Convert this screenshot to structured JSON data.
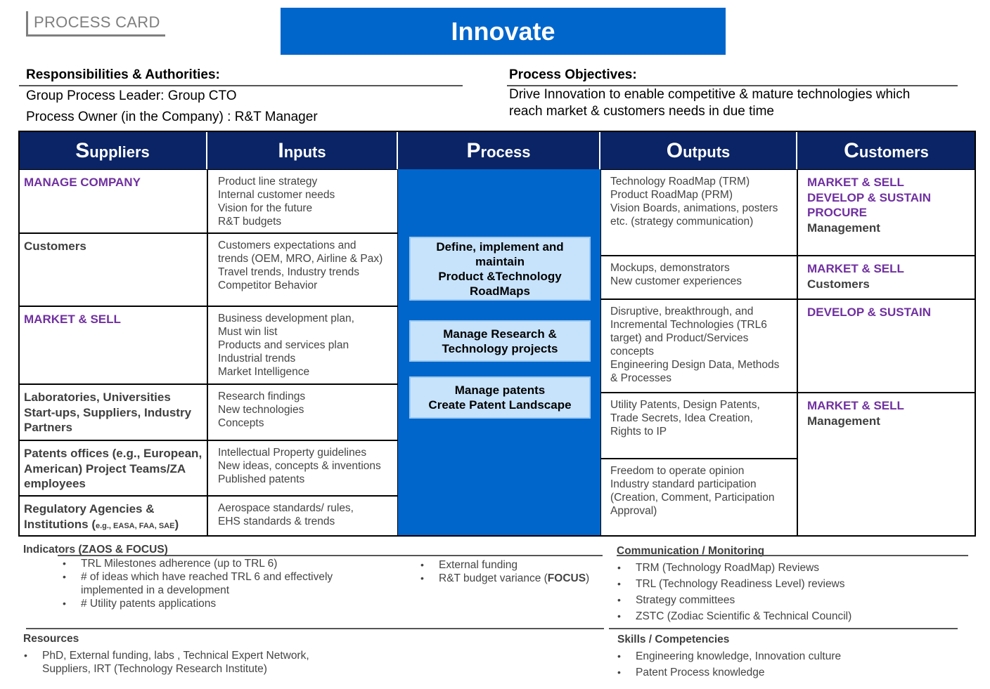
{
  "header": {
    "card_label": "PROCESS CARD",
    "title": "Innovate"
  },
  "responsibilities": {
    "heading": "Responsibilities  & Authorities:",
    "line1": "Group Process Leader:  Group CTO",
    "line2": "Process Owner (in the Company) : R&T Manager"
  },
  "objectives": {
    "heading": "Process Objectives:",
    "line1": "Drive Innovation  to enable competitive  & mature technologies which",
    "line2": "reach market & customers needs in due time"
  },
  "columns": {
    "suppliers": {
      "cap": "S",
      "rest": "uppliers"
    },
    "inputs": {
      "cap": "I",
      "rest": "nputs"
    },
    "process": {
      "cap": "P",
      "rest": "rocess"
    },
    "outputs": {
      "cap": "O",
      "rest": "utputs"
    },
    "customers": {
      "cap": "C",
      "rest": "ustomers"
    }
  },
  "suppliers": [
    "MANAGE COMPANY",
    "Customers",
    "MARKET & SELL",
    "Laboratories, Universities Start-ups, Suppliers, Industry Partners",
    "Patents offices (e.g., European, American) Project Teams/ZA employees",
    {
      "main": "Regulatory Agencies & Institutions (",
      "small": "e.g., EASA,  FAA,  SAE",
      "close": ")"
    }
  ],
  "inputs": [
    [
      "Product line strategy",
      "Internal  customer  needs",
      "Vision for the future",
      "R&T budgets"
    ],
    [
      "Customers expectations  and",
      "trends (OEM, MRO, Airline & Pax)",
      "Travel trends, Industry  trends",
      "Competitor Behavior"
    ],
    [
      "Business development  plan,",
      "Must win list",
      "Products and services plan",
      "Industrial  trends",
      "Market Intelligence"
    ],
    [
      "Research findings",
      "New technologies",
      "Concepts"
    ],
    [
      "Intellectual  Property guidelines",
      "New ideas, concepts & inventions",
      "Published patents"
    ],
    [
      "Aerospace standards/ rules,",
      "EHS standards & trends"
    ]
  ],
  "process": [
    [
      "Define, implement and",
      "maintain",
      "Product &Technology",
      "RoadMaps"
    ],
    [
      "Manage Research &",
      "Technology projects"
    ],
    [
      "Manage patents",
      "Create Patent Landscape"
    ]
  ],
  "outputs": [
    [
      "Technology  RoadMap (TRM)",
      "Product RoadMap (PRM)",
      "Vision Boards, animations,  posters",
      "etc. (strategy  communication)"
    ],
    [
      "Mockups, demonstrators",
      "New customer  experiences"
    ],
    [
      "Disruptive, breakthrough,  and",
      "Incremental  Technologies  (TRL6",
      "target) and Product/Services",
      "concepts",
      "Engineering  Design Data, Methods",
      "& Processes"
    ],
    [
      "Utility  Patents, Design Patents,",
      "Trade Secrets, Idea Creation,",
      "Rights to IP"
    ],
    [
      "Freedom to operate opinion",
      "Industry  standard participation",
      "(Creation,  Comment,  Participation",
      "Approval)"
    ]
  ],
  "customers": [
    {
      "purple": [
        "MARKET & SELL",
        "DEVELOP & SUSTAIN",
        "PROCURE"
      ],
      "dark": "Management"
    },
    {
      "purple": [
        "MARKET & SELL"
      ],
      "dark": "Customers"
    },
    {
      "purple": [
        "DEVELOP & SUSTAIN"
      ],
      "dark": ""
    },
    {
      "purple": [
        "MARKET & SELL"
      ],
      "dark": "Management"
    }
  ],
  "indicators": {
    "heading": "Indicators (ZAOS  & FOCUS)",
    "left": [
      "TRL Milestones adherence  (up to TRL 6)",
      "# of ideas which have reached TRL 6 and effectively implemented in a development",
      "# Utility patents applications"
    ],
    "right": [
      "External  funding",
      "R&T budget variance ("
    ],
    "right_bold": "FOCUS",
    "right_close": ")"
  },
  "communication": {
    "heading": "Communication / Monitoring",
    "items": [
      "TRM (Technology  RoadMap) Reviews",
      "TRL (Technology  Readiness Level) reviews",
      "Strategy committees",
      "ZSTC (Zodiac Scientific & Technical  Council)"
    ]
  },
  "resources": {
    "heading": "Resources",
    "items": [
      "PhD, External funding,  labs , Technical Expert Network, Suppliers, IRT (Technology  Research Institute)"
    ]
  },
  "skills": {
    "heading": "Skills / Competencies",
    "items": [
      "Engineering knowledge,  Innovation  culture",
      "Patent Process knowledge"
    ]
  }
}
